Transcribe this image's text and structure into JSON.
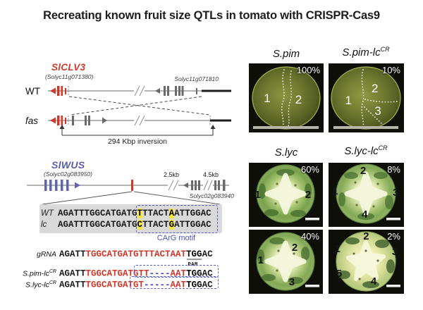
{
  "title": "Recreating known fruit size QTLs in tomato with CRISPR-Cas9",
  "clv3": {
    "gene": "SlCLV3",
    "gene_id": "(Solyc11g071380)",
    "neighbor_gene": "Solyc11g071810",
    "wt_label": "WT",
    "fas_label": "fas",
    "inversion_label": "294 Kbp inversion"
  },
  "wus": {
    "gene": "SlWUS",
    "gene_id": "(Solyc02g083950)",
    "neighbor_gene": "Solyc02g083940",
    "kb1": "2.5kb",
    "kb2": "4.5kb"
  },
  "alignment": {
    "box_label": "CArG motif",
    "rows": [
      {
        "label": "WT",
        "segments": [
          [
            "AGATTTGGCATGATG",
            "plain"
          ],
          [
            "T",
            "hl"
          ],
          [
            "TTACT",
            "plain"
          ],
          [
            "A",
            "hl"
          ],
          [
            "ATTGGAC",
            "plain"
          ]
        ]
      },
      {
        "label": "lc",
        "segments": [
          [
            "AGATTTGGCATGATG",
            "plain"
          ],
          [
            "C",
            "hl"
          ],
          [
            "TTACT",
            "plain"
          ],
          [
            "G",
            "hl"
          ],
          [
            "ATTGGAC",
            "plain"
          ]
        ]
      }
    ]
  },
  "edits": {
    "pam_label": "PAM",
    "rows": [
      {
        "label": "gRNA",
        "sup": "",
        "label_color": "red",
        "segments": [
          [
            "AGATT",
            "plain"
          ],
          [
            "TGGCATGATGTTTACTAAT",
            "red"
          ],
          [
            "TGG",
            "pam"
          ],
          [
            "AC",
            "plain"
          ]
        ]
      },
      {
        "label": "S.pim-lc",
        "sup": "CR",
        "label_color": "",
        "segments": [
          [
            "AGATT",
            "plain"
          ],
          [
            "TGGCATGATGTT",
            "red"
          ],
          [
            "----",
            "gap"
          ],
          [
            "AAT",
            "red"
          ],
          [
            "TGG",
            "bold"
          ],
          [
            "AC",
            "plain"
          ]
        ]
      },
      {
        "label": "S.lyc-lc",
        "sup": "CR",
        "label_color": "",
        "segments": [
          [
            "AGATT",
            "plain"
          ],
          [
            "TGGCATGATGT",
            "red"
          ],
          [
            "-----",
            "gap"
          ],
          [
            "AAT",
            "red"
          ],
          [
            "TGG",
            "bold"
          ],
          [
            "AC",
            "plain"
          ]
        ]
      }
    ]
  },
  "panels": [
    {
      "header": "S.pim",
      "sup": "",
      "pct": "100%",
      "locules": [
        "1",
        "2"
      ]
    },
    {
      "header": "S.pim-lc",
      "sup": "CR",
      "pct": "10%",
      "locules": [
        "1",
        "2",
        "3"
      ]
    },
    {
      "header": "S.lyc",
      "sup": "",
      "pct": "60%",
      "locules": [
        "1",
        "2"
      ]
    },
    {
      "header": "S.lyc-lc",
      "sup": "CR",
      "pct": "8%",
      "locules": [
        "2",
        "1",
        "3",
        "4"
      ]
    },
    {
      "header": "",
      "sup": "",
      "pct": "40%",
      "locules": [
        "2",
        "1",
        "3"
      ]
    },
    {
      "header": "",
      "sup": "",
      "pct": "2%",
      "locules": [
        "2",
        "1",
        "3",
        "5",
        "4"
      ]
    }
  ],
  "colors": {
    "accent_red": "#d2372a",
    "accent_purple": "#5a5ea9",
    "carg_blue": "#4a52c6",
    "highlight_yellow": "#f6e83e",
    "seq_box_gray": "#d9d9d9"
  }
}
